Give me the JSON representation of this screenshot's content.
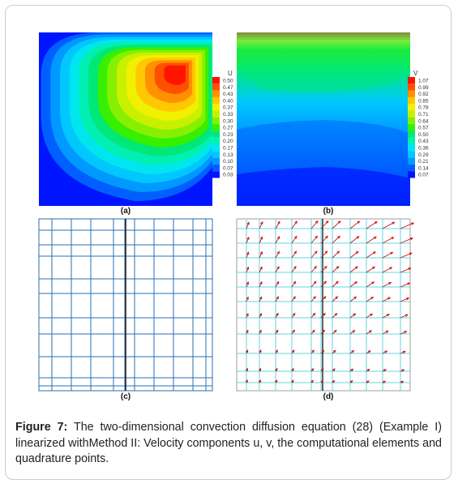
{
  "panels": {
    "a": {
      "label": "a",
      "legend_title": "U",
      "legend_values": [
        "0.50",
        "0.47",
        "0.43",
        "0.40",
        "0.37",
        "0.33",
        "0.30",
        "0.27",
        "0.23",
        "0.20",
        "0.17",
        "0.13",
        "0.10",
        "0.07",
        "0.03"
      ]
    },
    "b": {
      "label": "b",
      "legend_title": "V",
      "legend_values": [
        "1.07",
        "0.99",
        "0.92",
        "0.85",
        "0.78",
        "0.71",
        "0.64",
        "0.57",
        "0.50",
        "0.43",
        "0.36",
        "0.29",
        "0.21",
        "0.14",
        "0.07"
      ]
    },
    "c": {
      "label": "c"
    },
    "d": {
      "label": "d"
    }
  },
  "caption": {
    "label": "Figure 7:",
    "text": " The two-dimensional convection diffusion equation (28) (Example I) linearized withMethod II: Velocity components u, v, the computational elements and quadrature points."
  },
  "colors": {
    "contour_scale": [
      "#0015ff",
      "#0060ff",
      "#0099ff",
      "#00c8ff",
      "#00e6ee",
      "#00f0b4",
      "#00e878",
      "#36f000",
      "#86f000",
      "#c8f000",
      "#f0f000",
      "#ffc800",
      "#ff9000",
      "#ff5000",
      "#ff1400"
    ],
    "grid_c": "#2a6fb0",
    "grid_d": "#66d6e0",
    "arrow": "#cc1111"
  }
}
